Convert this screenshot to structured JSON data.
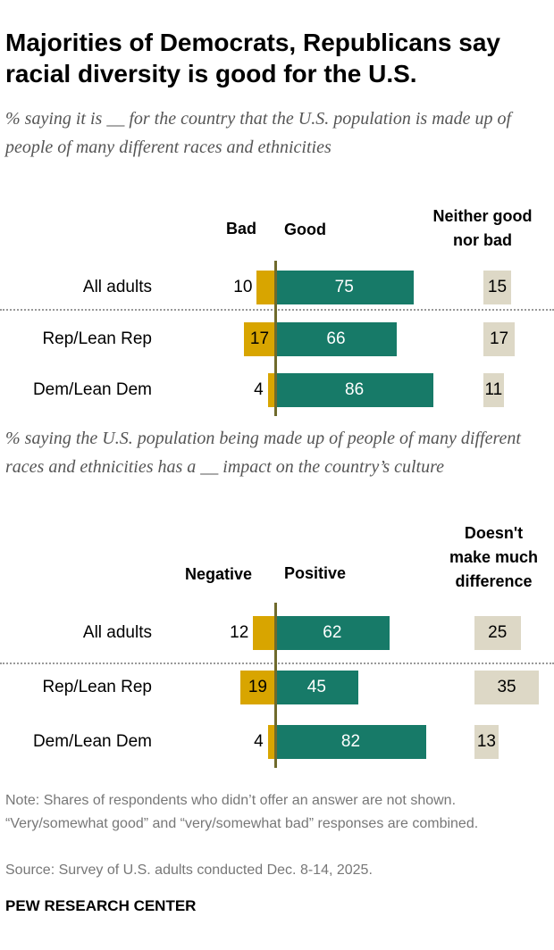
{
  "title": "Majorities of Democrats, Republicans say racial diversity is good for the U.S.",
  "colors": {
    "negative": "#d8a500",
    "positive": "#177a68",
    "neutral": "#ddd8c6",
    "axis": "#6f6a2c"
  },
  "chart_data": [
    {
      "type": "bar",
      "subtitle": "% saying it is __ for the country that the U.S. population is made up of people of many different races and ethnicities",
      "columns": {
        "negative": "Bad",
        "positive": "Good",
        "neutral": "Neither good nor bad"
      },
      "categories": [
        "All adults",
        "Rep/Lean Rep",
        "Dem/Lean Dem"
      ],
      "series": [
        {
          "name": "Bad",
          "values": [
            10,
            17,
            4
          ]
        },
        {
          "name": "Good",
          "values": [
            75,
            66,
            86
          ]
        },
        {
          "name": "Neither good nor bad",
          "values": [
            15,
            17,
            11
          ]
        }
      ]
    },
    {
      "type": "bar",
      "subtitle": "% saying the U.S. population being made up of people of many different races and ethnicities has a __ impact on the country’s culture",
      "columns": {
        "negative": "Negative",
        "positive": "Positive",
        "neutral": "Doesn't make much difference"
      },
      "categories": [
        "All adults",
        "Rep/Lean Rep",
        "Dem/Lean Dem"
      ],
      "series": [
        {
          "name": "Negative",
          "values": [
            12,
            19,
            4
          ]
        },
        {
          "name": "Positive",
          "values": [
            62,
            45,
            82
          ]
        },
        {
          "name": "Doesn't make much difference",
          "values": [
            25,
            35,
            13
          ]
        }
      ]
    }
  ],
  "note": "Note: Shares of respondents who didn’t offer an answer are not shown. “Very/somewhat good” and “very/somewhat bad” responses are combined.",
  "source": "Source: Survey of U.S. adults conducted Dec. 8-14, 2025.",
  "brand": "PEW RESEARCH CENTER"
}
